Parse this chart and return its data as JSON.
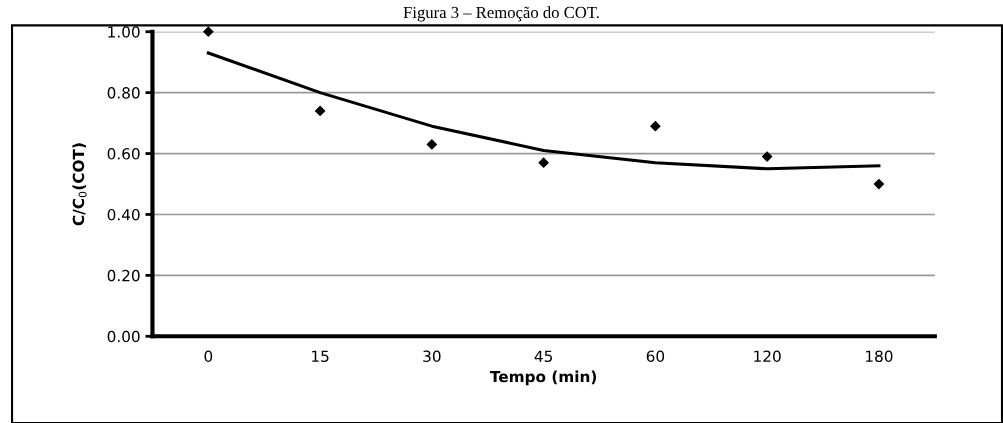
{
  "chart_data": {
    "type": "scatter",
    "title": "Figura 3 – Remoção do COT.",
    "xlabel": "Tempo (min)",
    "ylabel": "C/C$_{0}$(COT)",
    "categories": [
      "0",
      "15",
      "30",
      "45",
      "60",
      "120",
      "180"
    ],
    "series": [
      {
        "color": "#000000",
        "marker": "diamond",
        "values": [
          1.0,
          0.74,
          0.63,
          0.57,
          0.69,
          0.59,
          0.5
        ]
      },
      {
        "type": "line",
        "color": "#000000",
        "line_style": "solid",
        "values": [
          0.93,
          0.8,
          0.69,
          0.61,
          0.57,
          0.55,
          0.56
        ]
      }
    ],
    "ylim": [
      0,
      1.0
    ],
    "yticks": [
      {
        "value": 0,
        "label": "0.00"
      },
      {
        "value": 0.2,
        "label": "0.20"
      },
      {
        "value": 0.4,
        "label": "0.40"
      },
      {
        "value": 0.6,
        "label": "0.60"
      },
      {
        "value": 0.8,
        "label": "0.80"
      },
      {
        "value": 1.0,
        "label": "1.00"
      }
    ],
    "grid": "y",
    "legend": false
  }
}
